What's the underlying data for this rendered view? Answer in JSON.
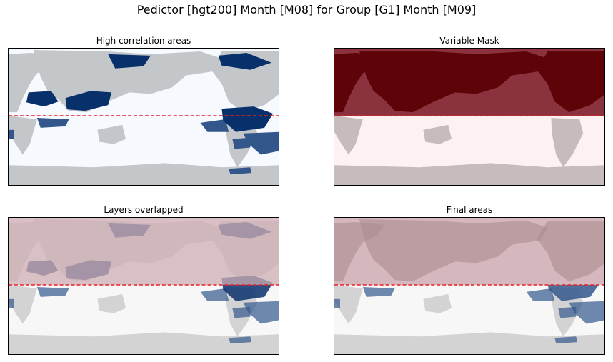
{
  "title": "Pedictor [hgt200] Month [M08] for Group [G1] Month [M09]",
  "chart_data": [
    {
      "type": "heatmap",
      "title": "High correlation areas",
      "layer": "correlation",
      "grid": false
    },
    {
      "type": "heatmap",
      "title": "Variable Mask",
      "layer": "mask",
      "grid": false
    },
    {
      "type": "heatmap",
      "title": "Layers overlapped",
      "layer": "overlap",
      "grid": false
    },
    {
      "type": "heatmap",
      "title": "Final areas",
      "layer": "final",
      "grid": false
    }
  ],
  "colors": {
    "land": "#c3c7ca",
    "ocean_blue_bg": "#f6fafe",
    "corr_dark": "#08306b",
    "corr_mid": "#33578b",
    "mask_dark": "#5e0409",
    "mask_red": "#8a323d",
    "mask_light": "#fdf2f1",
    "mask_land_south": "#c6bcbc",
    "overlay_tint": "#cfadb3",
    "overlay_land": "#a98a8f",
    "grey_bg": "#f7f7f7",
    "grey_land": "#d3d3d3",
    "dash_line": "#e8202a"
  }
}
